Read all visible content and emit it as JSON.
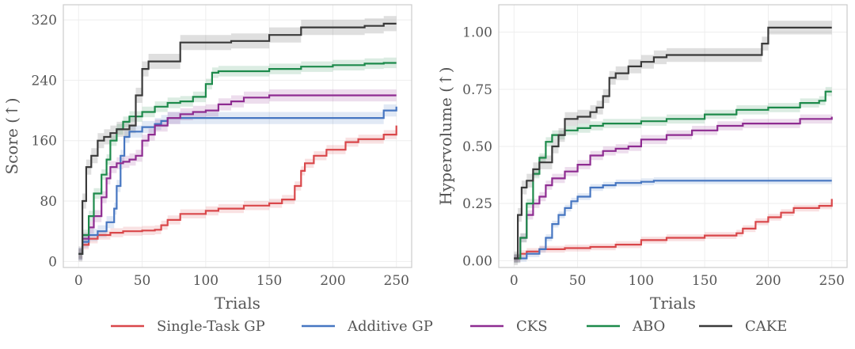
{
  "chart_data": [
    {
      "type": "line",
      "xlabel": "Trials",
      "ylabel": "Score (↑)",
      "xlim": [
        -12,
        262
      ],
      "ylim": [
        -8,
        340
      ],
      "xticks": [
        0,
        50,
        100,
        150,
        200,
        250
      ],
      "xtick_labels": [
        "0",
        "50",
        "100",
        "150",
        "200",
        "250"
      ],
      "yticks": [
        0,
        80,
        160,
        240,
        320
      ],
      "ytick_labels": [
        "0",
        "80",
        "160",
        "240",
        "320"
      ],
      "grid": true,
      "series": [
        {
          "name": "Single-Task GP",
          "color": "#d9474a",
          "band": 6,
          "x": [
            0,
            3,
            8,
            15,
            25,
            35,
            50,
            60,
            65,
            70,
            80,
            100,
            110,
            130,
            150,
            160,
            170,
            175,
            178,
            185,
            195,
            210,
            220,
            240,
            250
          ],
          "y": [
            10,
            22,
            30,
            35,
            38,
            40,
            41,
            42,
            48,
            55,
            63,
            67,
            70,
            74,
            77,
            82,
            100,
            120,
            130,
            140,
            148,
            158,
            162,
            168,
            180
          ]
        },
        {
          "name": "Additive GP",
          "color": "#4676c1",
          "band": 8,
          "x": [
            0,
            3,
            8,
            15,
            22,
            28,
            30,
            33,
            36,
            40,
            50,
            60,
            65,
            70,
            100,
            150,
            200,
            225,
            240,
            250
          ],
          "y": [
            10,
            26,
            35,
            40,
            52,
            70,
            100,
            140,
            165,
            172,
            178,
            182,
            186,
            190,
            190,
            190,
            190,
            190,
            200,
            205
          ]
        },
        {
          "name": "CKS",
          "color": "#8e2c91",
          "band": 8,
          "x": [
            0,
            3,
            8,
            12,
            18,
            22,
            25,
            30,
            35,
            40,
            45,
            50,
            55,
            60,
            70,
            80,
            90,
            100,
            110,
            120,
            130,
            150,
            175,
            200,
            225,
            250
          ],
          "y": [
            10,
            30,
            45,
            60,
            85,
            110,
            125,
            130,
            132,
            135,
            140,
            160,
            168,
            180,
            190,
            195,
            198,
            200,
            208,
            212,
            217,
            220,
            220,
            220,
            220,
            220
          ]
        },
        {
          "name": "ABO",
          "color": "#1d8a4b",
          "band": 7,
          "x": [
            0,
            3,
            8,
            12,
            18,
            22,
            25,
            30,
            35,
            40,
            50,
            60,
            70,
            80,
            90,
            100,
            105,
            110,
            130,
            150,
            175,
            200,
            225,
            240,
            250
          ],
          "y": [
            10,
            35,
            60,
            90,
            115,
            135,
            160,
            175,
            185,
            192,
            198,
            205,
            210,
            212,
            218,
            235,
            250,
            252,
            252,
            255,
            258,
            260,
            262,
            263,
            263
          ]
        },
        {
          "name": "CAKE",
          "color": "#3a3a3a",
          "band": 10,
          "x": [
            0,
            3,
            6,
            10,
            15,
            20,
            25,
            30,
            40,
            45,
            50,
            55,
            60,
            70,
            80,
            90,
            100,
            120,
            150,
            175,
            200,
            210,
            225,
            240,
            250
          ],
          "y": [
            10,
            80,
            125,
            140,
            160,
            165,
            170,
            175,
            180,
            220,
            255,
            265,
            265,
            265,
            290,
            290,
            290,
            292,
            300,
            310,
            310,
            310,
            312,
            315,
            315
          ]
        }
      ]
    },
    {
      "type": "line",
      "xlabel": "Trials",
      "ylabel": "Hypervolume (↑)",
      "xlim": [
        -12,
        262
      ],
      "ylim": [
        -0.03,
        1.12
      ],
      "xticks": [
        0,
        50,
        100,
        150,
        200,
        250
      ],
      "xtick_labels": [
        "0",
        "50",
        "100",
        "150",
        "200",
        "250"
      ],
      "yticks": [
        0.0,
        0.25,
        0.5,
        0.75,
        1.0
      ],
      "ytick_labels": [
        "0.00",
        "0.25",
        "0.50",
        "0.75",
        "1.00"
      ],
      "grid": true,
      "series": [
        {
          "name": "Single-Task GP",
          "color": "#d9474a",
          "band": 0.015,
          "x": [
            0,
            5,
            10,
            20,
            40,
            60,
            80,
            100,
            120,
            150,
            175,
            180,
            190,
            200,
            210,
            220,
            240,
            250
          ],
          "y": [
            0.01,
            0.03,
            0.04,
            0.05,
            0.055,
            0.06,
            0.07,
            0.09,
            0.1,
            0.11,
            0.12,
            0.14,
            0.17,
            0.19,
            0.21,
            0.23,
            0.24,
            0.27
          ]
        },
        {
          "name": "Additive GP",
          "color": "#4676c1",
          "band": 0.015,
          "x": [
            0,
            10,
            20,
            25,
            30,
            35,
            40,
            45,
            50,
            60,
            70,
            80,
            100,
            110,
            150,
            200,
            250
          ],
          "y": [
            0.01,
            0.03,
            0.05,
            0.1,
            0.16,
            0.2,
            0.23,
            0.26,
            0.28,
            0.32,
            0.33,
            0.34,
            0.345,
            0.35,
            0.35,
            0.35,
            0.35
          ]
        },
        {
          "name": "CKS",
          "color": "#8e2c91",
          "band": 0.02,
          "x": [
            0,
            5,
            10,
            15,
            20,
            25,
            30,
            40,
            50,
            60,
            70,
            80,
            90,
            100,
            120,
            140,
            160,
            180,
            200,
            225,
            250
          ],
          "y": [
            0.01,
            0.1,
            0.2,
            0.25,
            0.28,
            0.33,
            0.36,
            0.39,
            0.42,
            0.46,
            0.48,
            0.49,
            0.5,
            0.53,
            0.55,
            0.57,
            0.59,
            0.6,
            0.6,
            0.62,
            0.63
          ]
        },
        {
          "name": "ABO",
          "color": "#1d8a4b",
          "band": 0.02,
          "x": [
            0,
            5,
            10,
            15,
            20,
            25,
            30,
            40,
            50,
            60,
            70,
            80,
            100,
            120,
            150,
            175,
            200,
            225,
            240,
            245,
            250
          ],
          "y": [
            0.01,
            0.1,
            0.25,
            0.38,
            0.45,
            0.52,
            0.55,
            0.57,
            0.58,
            0.59,
            0.6,
            0.6,
            0.61,
            0.62,
            0.64,
            0.66,
            0.67,
            0.69,
            0.7,
            0.74,
            0.74
          ]
        },
        {
          "name": "CAKE",
          "color": "#3a3a3a",
          "band": 0.03,
          "x": [
            0,
            3,
            6,
            10,
            15,
            20,
            30,
            35,
            40,
            50,
            60,
            65,
            70,
            75,
            80,
            90,
            100,
            110,
            120,
            150,
            175,
            195,
            200,
            225,
            250
          ],
          "y": [
            0.01,
            0.2,
            0.32,
            0.35,
            0.4,
            0.43,
            0.5,
            0.55,
            0.62,
            0.63,
            0.65,
            0.67,
            0.72,
            0.8,
            0.82,
            0.85,
            0.87,
            0.89,
            0.9,
            0.9,
            0.9,
            0.95,
            1.02,
            1.02,
            1.02
          ]
        }
      ]
    }
  ],
  "legend": {
    "placement": "bottom",
    "entries": [
      {
        "label": "Single-Task GP",
        "color": "#d9474a"
      },
      {
        "label": "Additive GP",
        "color": "#4676c1"
      },
      {
        "label": "CKS",
        "color": "#8e2c91"
      },
      {
        "label": "ABO",
        "color": "#1d8a4b"
      },
      {
        "label": "CAKE",
        "color": "#3a3a3a"
      }
    ]
  }
}
